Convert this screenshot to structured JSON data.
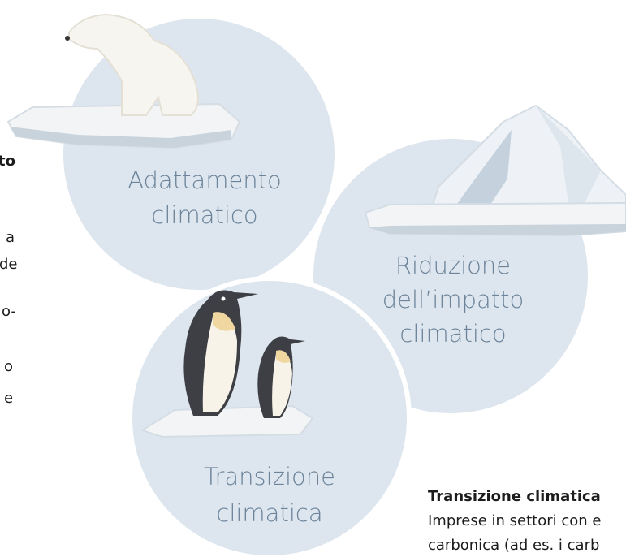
{
  "circles": [
    {
      "label_lines": [
        "Adattamento",
        "climatico"
      ]
    },
    {
      "label_lines": [
        "Riduzione",
        "dell’impatto",
        "climatico"
      ]
    },
    {
      "label_lines": [
        "Transizione",
        "climatica"
      ]
    }
  ],
  "side_text": {
    "title": "Transizione climatica",
    "lines": [
      "Imprese in settori con e",
      "carbonica (ad es. i carb"
    ]
  },
  "left_fragments": {
    "title": "to",
    "lines": [
      "a",
      "de",
      "o-",
      "o",
      "e"
    ]
  }
}
